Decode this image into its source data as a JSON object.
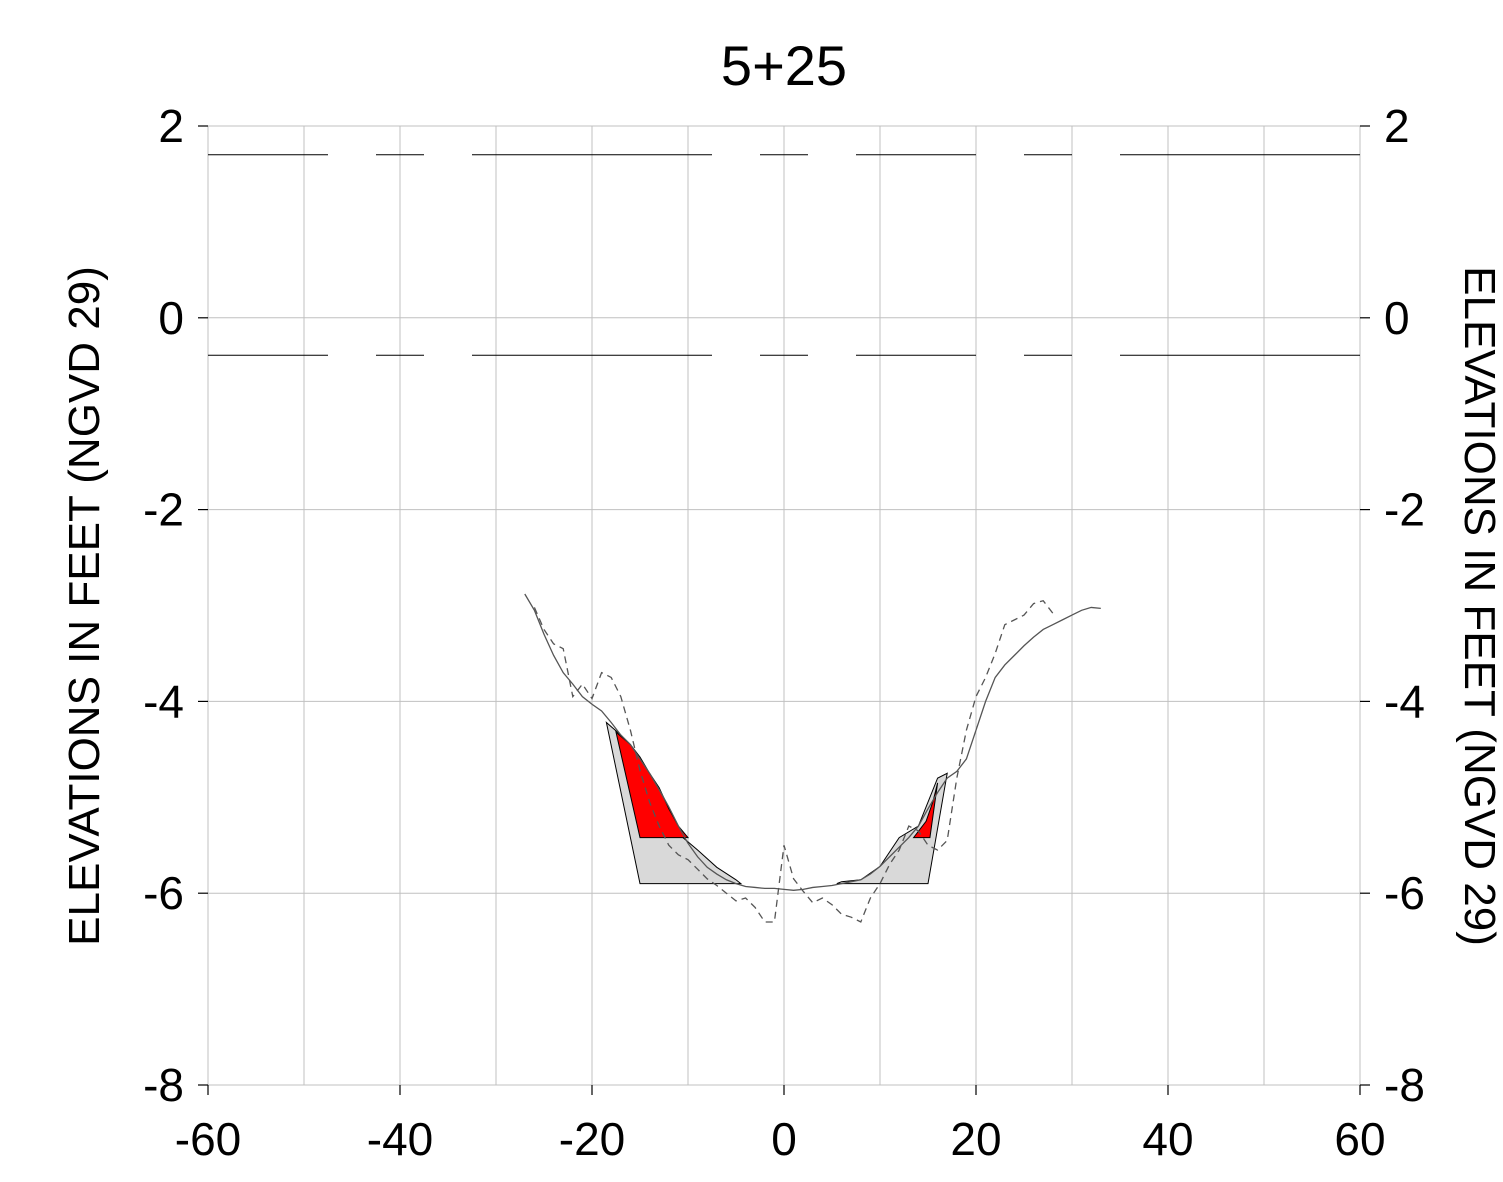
{
  "chart_data": {
    "type": "line",
    "title": "5+25",
    "xlabel": "",
    "ylabel": "ELEVATIONS IN FEET (NGVD 29)",
    "ylabel_right": "ELEVATIONS IN FEET (NGVD 29)",
    "xlim": [
      -60,
      60
    ],
    "ylim": [
      -8,
      2
    ],
    "x_ticks": [
      -60,
      -40,
      -20,
      0,
      20,
      40,
      60
    ],
    "y_ticks": [
      -8,
      -6,
      -4,
      -2,
      0,
      2
    ],
    "x_tick_labels": [
      "-60",
      "-40",
      "-20",
      "0",
      "20",
      "40",
      "60"
    ],
    "y_tick_labels": [
      "-8",
      "-6",
      "-4",
      "-2",
      "0",
      "2"
    ],
    "grid": true,
    "x_grid_step": 10,
    "horizontal_dashed_lines": [
      1.7,
      -0.39
    ],
    "series": [
      {
        "style": "solid",
        "x": [
          -27,
          -26,
          -25,
          -24,
          -23,
          -22,
          -21,
          -20,
          -19,
          -18,
          -17,
          -16,
          -15,
          -14,
          -13,
          -12,
          -11,
          -10,
          -9,
          -8,
          -7,
          -6,
          -5,
          -4,
          -3,
          -2,
          -1,
          0,
          1,
          2,
          3,
          4,
          5,
          6,
          7,
          8,
          9,
          10,
          11,
          12,
          13,
          14,
          15,
          16,
          17,
          18,
          19,
          20,
          21,
          22,
          23,
          24,
          25,
          26,
          27,
          28,
          29,
          30,
          31,
          32,
          33
        ],
        "y": [
          -2.88,
          -3.05,
          -3.3,
          -3.52,
          -3.7,
          -3.82,
          -3.95,
          -4.03,
          -4.1,
          -4.22,
          -4.35,
          -4.45,
          -4.6,
          -4.75,
          -4.92,
          -5.1,
          -5.3,
          -5.48,
          -5.62,
          -5.73,
          -5.8,
          -5.86,
          -5.9,
          -5.93,
          -5.94,
          -5.95,
          -5.95,
          -5.96,
          -5.97,
          -5.96,
          -5.94,
          -5.93,
          -5.92,
          -5.9,
          -5.88,
          -5.86,
          -5.8,
          -5.72,
          -5.62,
          -5.52,
          -5.42,
          -5.3,
          -5.12,
          -4.95,
          -4.8,
          -4.73,
          -4.6,
          -4.3,
          -4.0,
          -3.75,
          -3.62,
          -3.52,
          -3.42,
          -3.33,
          -3.25,
          -3.2,
          -3.15,
          -3.1,
          -3.05,
          -3.02,
          -3.03
        ]
      },
      {
        "style": "dashed",
        "x": [
          -26,
          -25,
          -24,
          -23,
          -22,
          -21,
          -20,
          -19,
          -18,
          -17,
          -16,
          -15,
          -14,
          -13,
          -12,
          -11,
          -10,
          -9,
          -8,
          -7,
          -6,
          -5,
          -4,
          -3,
          -2,
          -1,
          0,
          1,
          2,
          3,
          4,
          5,
          6,
          7,
          8,
          9,
          10,
          11,
          12,
          13,
          14,
          15,
          16,
          17,
          18,
          19,
          20,
          21,
          22,
          23,
          24,
          25,
          26,
          27,
          28
        ],
        "y": [
          -3.02,
          -3.25,
          -3.4,
          -3.45,
          -3.95,
          -3.82,
          -3.97,
          -3.7,
          -3.75,
          -3.95,
          -4.3,
          -4.72,
          -5.05,
          -5.3,
          -5.5,
          -5.6,
          -5.65,
          -5.75,
          -5.85,
          -5.92,
          -6.0,
          -6.08,
          -6.05,
          -6.15,
          -6.3,
          -6.3,
          -5.5,
          -5.85,
          -5.98,
          -6.1,
          -6.05,
          -6.12,
          -6.22,
          -6.25,
          -6.3,
          -6.05,
          -5.9,
          -5.7,
          -5.55,
          -5.3,
          -5.35,
          -5.5,
          -5.55,
          -5.45,
          -4.8,
          -4.3,
          -3.95,
          -3.75,
          -3.5,
          -3.2,
          -3.15,
          -3.1,
          -2.98,
          -2.95,
          -3.08
        ]
      }
    ],
    "fill_regions": [
      {
        "color": "#d9d9d9",
        "x": [
          -18.5,
          -15,
          -4.5,
          -5,
          -7,
          -9,
          -11,
          -13,
          -15,
          -17
        ],
        "y": [
          -4.22,
          -5.9,
          -5.9,
          -5.86,
          -5.73,
          -5.55,
          -5.38,
          -5.05,
          -4.6,
          -4.35
        ]
      },
      {
        "color": "#d9d9d9",
        "x": [
          5.5,
          15,
          17,
          16,
          15.2,
          14,
          12,
          10,
          8,
          6
        ],
        "y": [
          -5.9,
          -5.9,
          -4.75,
          -4.8,
          -5.0,
          -5.3,
          -5.42,
          -5.72,
          -5.86,
          -5.88
        ]
      },
      {
        "color": "#ff0000",
        "x": [
          -17.5,
          -15,
          -10,
          -11,
          -12,
          -13,
          -14,
          -15,
          -16
        ],
        "y": [
          -4.32,
          -5.42,
          -5.42,
          -5.3,
          -5.12,
          -4.9,
          -4.75,
          -4.58,
          -4.45
        ]
      },
      {
        "color": "#ff0000",
        "x": [
          13.5,
          15.2,
          16,
          15.5,
          14.8
        ],
        "y": [
          -5.42,
          -5.42,
          -4.85,
          -5.05,
          -5.25
        ]
      }
    ]
  }
}
